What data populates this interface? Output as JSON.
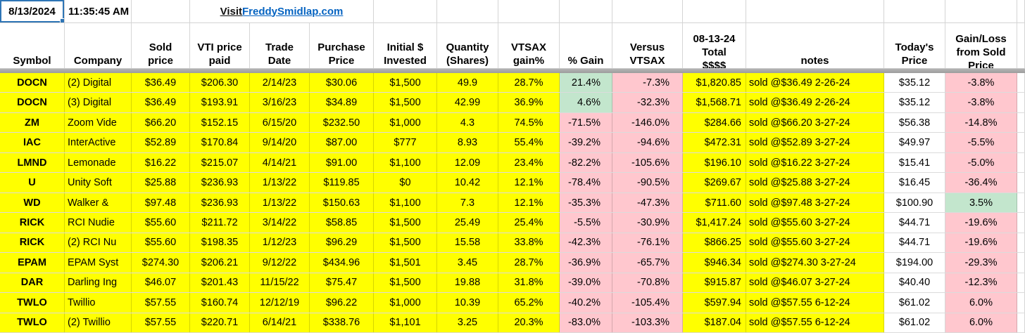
{
  "top": {
    "date": "8/13/2024",
    "time": "11:35:45 AM",
    "link_prefix": "Visit ",
    "link_text": "FreddySmidlap.com"
  },
  "headers": {
    "symbol": "Symbol",
    "company": "Company",
    "sold_price": "Sold\nprice",
    "vti_price": "VTI price\npaid",
    "trade_date": "Trade\nDate",
    "purchase_price": "Purchase\nPrice",
    "initial_invested": "Initial $\nInvested",
    "quantity": "Quantity\n(Shares)",
    "vtsax_gain": "VTSAX\ngain%",
    "pct_gain": "% Gain",
    "versus_vtsax": "Versus\nVTSAX",
    "total": "08-13-24\nTotal\n$$$$",
    "notes": "notes",
    "todays_price": "Today's\nPrice",
    "gain_loss": "Gain/Loss\nfrom Sold\nPrice"
  },
  "colors": {
    "highlight_yellow": "#ffff00",
    "negative_pink": "#ffc7ce",
    "positive_green": "#c3e6cd",
    "link_blue": "#0563c1",
    "selection_blue": "#2e75b6",
    "pane_divider_gray": "#a6a6a6"
  },
  "rows": [
    {
      "symbol": "DOCN",
      "company": "(2) Digital",
      "sold_price": "$36.49",
      "vti_price": "$206.30",
      "trade_date": "2/14/23",
      "purchase_price": "$30.06",
      "initial_invested": "$1,500",
      "quantity": "49.9",
      "vtsax_gain": "28.7%",
      "pct_gain": "21.4%",
      "pct_gain_bg": "green",
      "versus_vtsax": "-7.3%",
      "total": "$1,820.85",
      "note": "sold @$36.49 2-26-24",
      "todays_price": "$35.12",
      "gain_loss": "-3.8%",
      "gain_loss_bg": "pink"
    },
    {
      "symbol": "DOCN",
      "company": "(3) Digital",
      "sold_price": "$36.49",
      "vti_price": "$193.91",
      "trade_date": "3/16/23",
      "purchase_price": "$34.89",
      "initial_invested": "$1,500",
      "quantity": "42.99",
      "vtsax_gain": "36.9%",
      "pct_gain": "4.6%",
      "pct_gain_bg": "green",
      "versus_vtsax": "-32.3%",
      "total": "$1,568.71",
      "note": "sold @$36.49 2-26-24",
      "todays_price": "$35.12",
      "gain_loss": "-3.8%",
      "gain_loss_bg": "pink"
    },
    {
      "symbol": "ZM",
      "company": "Zoom Vide",
      "sold_price": "$66.20",
      "vti_price": "$152.15",
      "trade_date": "6/15/20",
      "purchase_price": "$232.50",
      "initial_invested": "$1,000",
      "quantity": "4.3",
      "vtsax_gain": "74.5%",
      "pct_gain": "-71.5%",
      "pct_gain_bg": "pink",
      "versus_vtsax": "-146.0%",
      "total": "$284.66",
      "note": "sold @$66.20 3-27-24",
      "todays_price": "$56.38",
      "gain_loss": "-14.8%",
      "gain_loss_bg": "pink"
    },
    {
      "symbol": "IAC",
      "company": "InterActive",
      "sold_price": "$52.89",
      "vti_price": "$170.84",
      "trade_date": "9/14/20",
      "purchase_price": "$87.00",
      "initial_invested": "$777",
      "quantity": "8.93",
      "vtsax_gain": "55.4%",
      "pct_gain": "-39.2%",
      "pct_gain_bg": "pink",
      "versus_vtsax": "-94.6%",
      "total": "$472.31",
      "note": "sold @$52.89 3-27-24",
      "todays_price": "$49.97",
      "gain_loss": "-5.5%",
      "gain_loss_bg": "pink"
    },
    {
      "symbol": "LMND",
      "company": "Lemonade",
      "sold_price": "$16.22",
      "vti_price": "$215.07",
      "trade_date": "4/14/21",
      "purchase_price": "$91.00",
      "initial_invested": "$1,100",
      "quantity": "12.09",
      "vtsax_gain": "23.4%",
      "pct_gain": "-82.2%",
      "pct_gain_bg": "pink",
      "versus_vtsax": "-105.6%",
      "total": "$196.10",
      "note": "sold @$16.22  3-27-24",
      "todays_price": "$15.41",
      "gain_loss": "-5.0%",
      "gain_loss_bg": "pink"
    },
    {
      "symbol": "U",
      "company": "Unity Soft",
      "sold_price": "$25.88",
      "vti_price": "$236.93",
      "trade_date": "1/13/22",
      "purchase_price": "$119.85",
      "initial_invested": "$0",
      "quantity": "10.42",
      "vtsax_gain": "12.1%",
      "pct_gain": "-78.4%",
      "pct_gain_bg": "pink",
      "versus_vtsax": "-90.5%",
      "total": "$269.67",
      "note": "sold @$25.88 3-27-24",
      "todays_price": "$16.45",
      "gain_loss": "-36.4%",
      "gain_loss_bg": "pink"
    },
    {
      "symbol": "WD",
      "company": "Walker &",
      "sold_price": "$97.48",
      "vti_price": "$236.93",
      "trade_date": "1/13/22",
      "purchase_price": "$150.63",
      "initial_invested": "$1,100",
      "quantity": "7.3",
      "vtsax_gain": "12.1%",
      "pct_gain": "-35.3%",
      "pct_gain_bg": "pink",
      "versus_vtsax": "-47.3%",
      "total": "$711.60",
      "note": "sold @$97.48 3-27-24",
      "todays_price": "$100.90",
      "gain_loss": "3.5%",
      "gain_loss_bg": "green"
    },
    {
      "symbol": "RICK",
      "company": "RCI Nudie",
      "sold_price": "$55.60",
      "vti_price": "$211.72",
      "trade_date": "3/14/22",
      "purchase_price": "$58.85",
      "initial_invested": "$1,500",
      "quantity": "25.49",
      "vtsax_gain": "25.4%",
      "pct_gain": "-5.5%",
      "pct_gain_bg": "pink",
      "versus_vtsax": "-30.9%",
      "total": "$1,417.24",
      "note": "sold @$55.60 3-27-24",
      "todays_price": "$44.71",
      "gain_loss": "-19.6%",
      "gain_loss_bg": "pink"
    },
    {
      "symbol": "RICK",
      "company": "(2) RCI Nu",
      "sold_price": "$55.60",
      "vti_price": "$198.35",
      "trade_date": "1/12/23",
      "purchase_price": "$96.29",
      "initial_invested": "$1,500",
      "quantity": "15.58",
      "vtsax_gain": "33.8%",
      "pct_gain": "-42.3%",
      "pct_gain_bg": "pink",
      "versus_vtsax": "-76.1%",
      "total": "$866.25",
      "note": "sold @$55.60 3-27-24",
      "todays_price": "$44.71",
      "gain_loss": "-19.6%",
      "gain_loss_bg": "pink"
    },
    {
      "symbol": "EPAM",
      "company": "EPAM Syst",
      "sold_price": "$274.30",
      "vti_price": "$206.21",
      "trade_date": "9/12/22",
      "purchase_price": "$434.96",
      "initial_invested": "$1,501",
      "quantity": "3.45",
      "vtsax_gain": "28.7%",
      "pct_gain": "-36.9%",
      "pct_gain_bg": "pink",
      "versus_vtsax": "-65.7%",
      "total": "$946.34",
      "note": "sold @$274.30 3-27-24",
      "todays_price": "$194.00",
      "gain_loss": "-29.3%",
      "gain_loss_bg": "pink"
    },
    {
      "symbol": "DAR",
      "company": "Darling Ing",
      "sold_price": "$46.07",
      "vti_price": "$201.43",
      "trade_date": "11/15/22",
      "purchase_price": "$75.47",
      "initial_invested": "$1,500",
      "quantity": "19.88",
      "vtsax_gain": "31.8%",
      "pct_gain": "-39.0%",
      "pct_gain_bg": "pink",
      "versus_vtsax": "-70.8%",
      "total": "$915.87",
      "note": "sold @$46.07 3-27-24",
      "todays_price": "$40.40",
      "gain_loss": "-12.3%",
      "gain_loss_bg": "pink"
    },
    {
      "symbol": "TWLO",
      "company": "Twillio",
      "sold_price": "$57.55",
      "vti_price": "$160.74",
      "trade_date": "12/12/19",
      "purchase_price": "$96.22",
      "initial_invested": "$1,000",
      "quantity": "10.39",
      "vtsax_gain": "65.2%",
      "pct_gain": "-40.2%",
      "pct_gain_bg": "pink",
      "versus_vtsax": "-105.4%",
      "total": "$597.94",
      "note": "sold @$57.55 6-12-24",
      "todays_price": "$61.02",
      "gain_loss": "6.0%",
      "gain_loss_bg": "pink"
    },
    {
      "symbol": "TWLO",
      "company": "(2) Twillio",
      "sold_price": "$57.55",
      "vti_price": "$220.71",
      "trade_date": "6/14/21",
      "purchase_price": "$338.76",
      "initial_invested": "$1,101",
      "quantity": "3.25",
      "vtsax_gain": "20.3%",
      "pct_gain": "-83.0%",
      "pct_gain_bg": "pink",
      "versus_vtsax": "-103.3%",
      "total": "$187.04",
      "note": "sold @$57.55 6-12-24",
      "todays_price": "$61.02",
      "gain_loss": "6.0%",
      "gain_loss_bg": "pink"
    }
  ]
}
